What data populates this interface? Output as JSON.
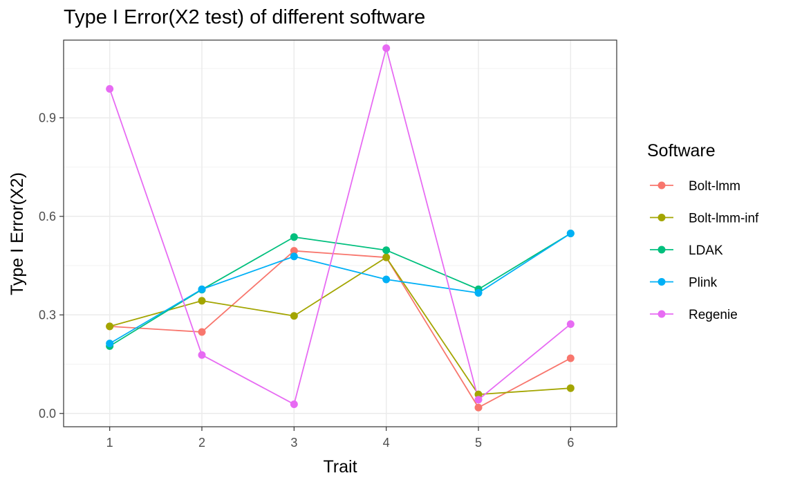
{
  "chart_data": {
    "type": "line",
    "title": "Type I Error(X2 test) of different software",
    "xlabel": "Trait",
    "ylabel": "Type I Error(X2)",
    "x": [
      1,
      2,
      3,
      4,
      5,
      6
    ],
    "xlim": [
      0.5,
      6.5
    ],
    "ylim": [
      -0.0405,
      1.1365
    ],
    "yticks": [
      0.0,
      0.3,
      0.6,
      0.9
    ],
    "ytick_labels": [
      "0.0",
      "0.3",
      "0.6",
      "0.9"
    ],
    "xtick_labels": [
      "1",
      "2",
      "3",
      "4",
      "5",
      "6"
    ],
    "grid": true,
    "legend": {
      "title": "Software",
      "position": "right"
    },
    "series": [
      {
        "name": "Bolt-lmm",
        "color": "#F8766D",
        "values": [
          0.265,
          0.248,
          0.495,
          0.475,
          0.018,
          0.168
        ]
      },
      {
        "name": "Bolt-lmm-inf",
        "color": "#A3A500",
        "values": [
          0.265,
          0.343,
          0.297,
          0.475,
          0.058,
          0.077
        ]
      },
      {
        "name": "LDAK",
        "color": "#00BF7D",
        "values": [
          0.205,
          0.377,
          0.537,
          0.497,
          0.378,
          0.548
        ]
      },
      {
        "name": "Plink",
        "color": "#00B0F6",
        "values": [
          0.213,
          0.378,
          0.478,
          0.408,
          0.367,
          0.548
        ]
      },
      {
        "name": "Regenie",
        "color": "#E76BF3",
        "values": [
          0.988,
          0.178,
          0.028,
          1.112,
          0.042,
          0.272
        ]
      }
    ]
  }
}
